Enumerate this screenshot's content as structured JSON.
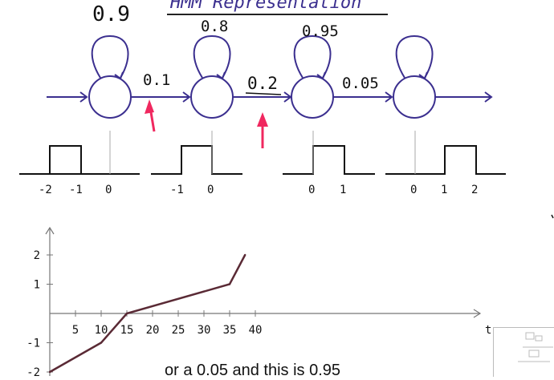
{
  "title": "HMM Representation",
  "self_loop_probs": [
    "0.9",
    "0.8",
    "0.95"
  ],
  "transition_probs": [
    "0.1",
    "0.2",
    "0.05"
  ],
  "colors": {
    "ink": "#3b2f8f",
    "arrow_accent": "#f0285f",
    "pulse": "#111111",
    "plot_line": "#5a2a35",
    "axis": "#777777"
  },
  "pulse_panels": [
    {
      "ticks": [
        "-2",
        "-1",
        "0"
      ]
    },
    {
      "ticks": [
        "-1",
        "0"
      ]
    },
    {
      "ticks": [
        "0",
        "1"
      ]
    },
    {
      "ticks": [
        "0",
        "1",
        "2"
      ]
    }
  ],
  "chart_data": {
    "type": "line",
    "xlabel": "t",
    "ylabel": "",
    "xticks": [
      "5",
      "10",
      "15",
      "20",
      "25",
      "30",
      "35",
      "40"
    ],
    "yticks": [
      "2",
      "1",
      "-1",
      "-2"
    ],
    "xlim": [
      0,
      41
    ],
    "ylim": [
      -2,
      2.5
    ],
    "series": [
      {
        "x": [
          0,
          10,
          15,
          35,
          38
        ],
        "y": [
          -2,
          -1,
          0,
          1,
          2
        ]
      }
    ],
    "grid": false
  },
  "caption": "or a 0.05 and this is 0.95"
}
